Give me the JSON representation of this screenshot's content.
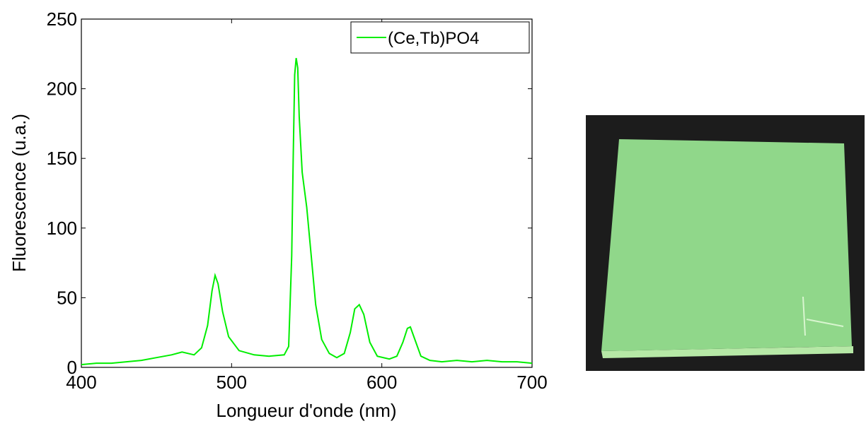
{
  "chart_data": {
    "type": "line",
    "xlabel": "Longueur d'onde (nm)",
    "ylabel": "Fluorescence (u.a.)",
    "x": [
      400,
      410,
      420,
      430,
      440,
      450,
      460,
      467,
      475,
      480,
      484,
      487,
      489,
      491,
      494,
      498,
      505,
      515,
      525,
      535,
      538,
      540,
      541,
      542,
      543,
      544,
      545,
      547,
      550,
      553,
      556,
      560,
      565,
      570,
      575,
      579,
      582,
      585,
      588,
      592,
      597,
      605,
      610,
      614,
      617,
      619,
      622,
      626,
      632,
      640,
      650,
      660,
      670,
      680,
      690,
      700
    ],
    "series": [
      {
        "name": "(Ce,Tb)PO4",
        "color": "#00ee00",
        "values": [
          2,
          3,
          3,
          4,
          5,
          7,
          9,
          11,
          9,
          14,
          30,
          55,
          66,
          60,
          40,
          22,
          12,
          9,
          8,
          9,
          15,
          80,
          150,
          210,
          222,
          215,
          180,
          140,
          115,
          80,
          45,
          20,
          10,
          7,
          10,
          25,
          42,
          45,
          38,
          18,
          8,
          6,
          8,
          18,
          28,
          29,
          20,
          8,
          5,
          4,
          5,
          4,
          5,
          4,
          4,
          3
        ]
      }
    ],
    "xlim": [
      400,
      700
    ],
    "xticks": [
      400,
      500,
      600,
      700
    ],
    "ylim": [
      0,
      250
    ],
    "yticks": [
      0,
      50,
      100,
      150,
      200,
      250
    ],
    "legend": "upper-right"
  }
}
